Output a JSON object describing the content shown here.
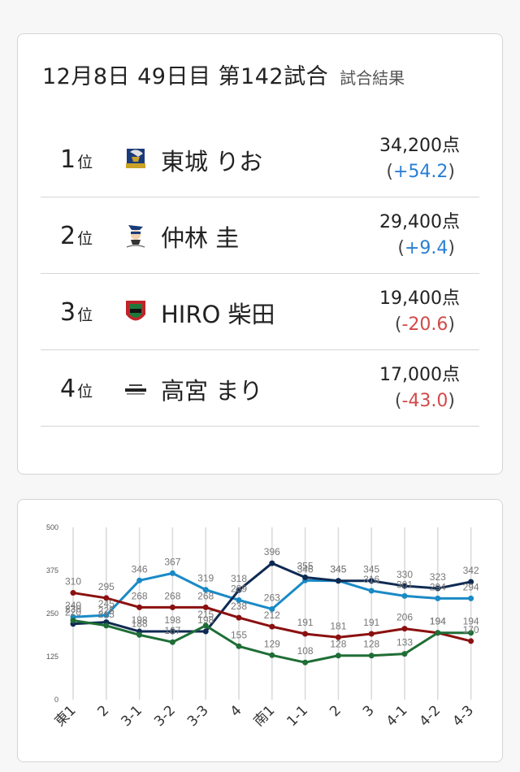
{
  "header": {
    "title": "12月8日  49日目  第142試合",
    "subtitle": "試合結果"
  },
  "results": [
    {
      "rank": "1",
      "rank_unit": "位",
      "player": "東城 りお",
      "score": "34,200点",
      "delta_open": "(",
      "delta": "+54.2",
      "delta_close": ")",
      "delta_sign": "positive",
      "team_logo": "shield-eagle-logo"
    },
    {
      "rank": "2",
      "rank_unit": "位",
      "player": "仲林 圭",
      "score": "29,400点",
      "delta_open": "(",
      "delta": "+9.4",
      "delta_close": ")",
      "delta_sign": "positive",
      "team_logo": "pirates-logo"
    },
    {
      "rank": "3",
      "rank_unit": "位",
      "player": "HIRO 柴田",
      "score": "19,400点",
      "delta_open": "(",
      "delta": "-20.6",
      "delta_close": ")",
      "delta_sign": "negative",
      "team_logo": "jets-shield-logo"
    },
    {
      "rank": "4",
      "rank_unit": "位",
      "player": "高宮 まり",
      "score": "17,000点",
      "delta_open": "(",
      "delta": "-43.0",
      "delta_close": ")",
      "delta_sign": "negative",
      "team_logo": "konami-logo"
    }
  ],
  "colors": {
    "positive": "#2a7fd4",
    "negative": "#d24a4a",
    "grid": "#d9d9d9"
  },
  "chart_data": {
    "type": "line",
    "categories": [
      "東1",
      "2",
      "3-1",
      "3-2",
      "3-3",
      "4",
      "南1",
      "1-1",
      "2",
      "3",
      "4-1",
      "4-2",
      "4-3"
    ],
    "ylim": [
      0,
      500
    ],
    "yticks": [
      "0",
      "125",
      "250",
      "375",
      "500"
    ],
    "grid": true,
    "series": [
      {
        "color": "#1a8ac6",
        "values": [
          240,
          245,
          346,
          367,
          319,
          289,
          263,
          346,
          345,
          316,
          301,
          294,
          294
        ]
      },
      {
        "color": "#0f2a52",
        "values": [
          220,
          225,
          198,
          198,
          198,
          318,
          396,
          355,
          345,
          345,
          330,
          323,
          342
        ]
      },
      {
        "color": "#8b1010",
        "values": [
          310,
          295,
          268,
          268,
          268,
          238,
          212,
          191,
          181,
          191,
          206,
          194,
          170
        ]
      },
      {
        "color": "#1f6e36",
        "values": [
          230,
          215,
          188,
          167,
          215,
          155,
          129,
          108,
          128,
          128,
          133,
          194,
          194
        ]
      }
    ]
  }
}
